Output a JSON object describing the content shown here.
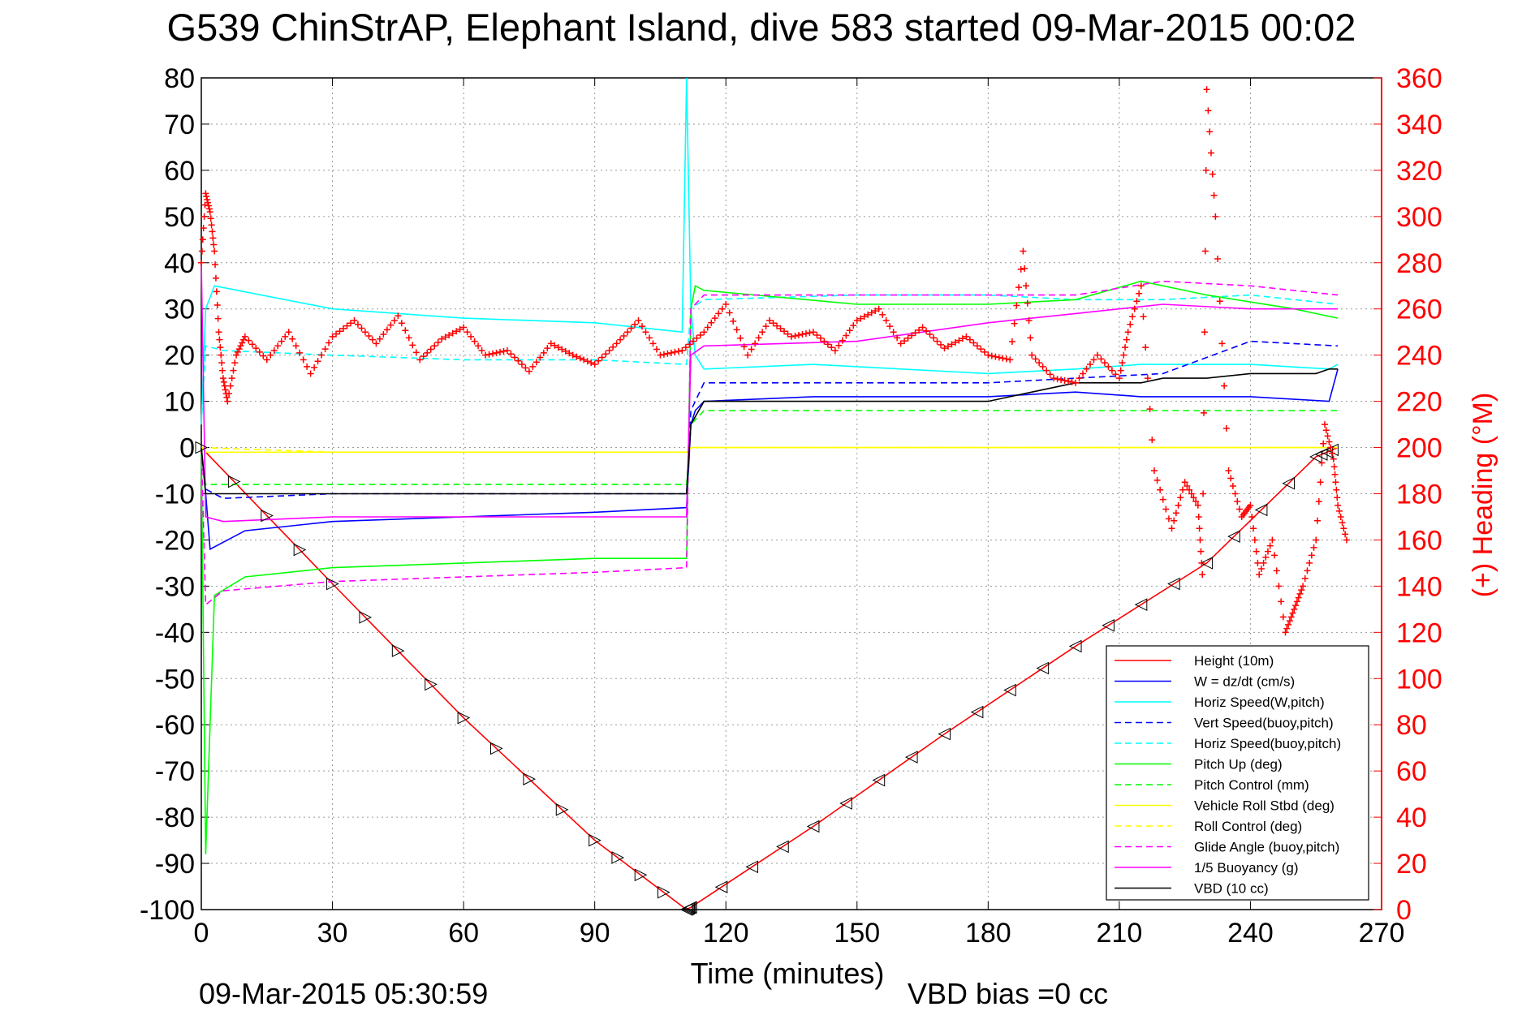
{
  "title": "G539 ChinStrAP, Elephant Island, dive 583 started 09-Mar-2015 00:02",
  "footer_timestamp": "09-Mar-2015 05:30:59",
  "footer_note": "VBD bias =0 cc",
  "colors": {
    "height": "#ff0000",
    "w": "#0000ff",
    "horiz": "#00ffff",
    "pitch": "#00ff00",
    "roll": "#ffff00",
    "glide": "#ff00ff",
    "vbd": "#000000",
    "heading": "#ff0000"
  },
  "chart_data": {
    "type": "line",
    "xlabel": "Time (minutes)",
    "ylabel_right": "(+) Heading (°M)",
    "xlim": [
      0,
      270
    ],
    "ylim": [
      -100,
      80
    ],
    "y2lim": [
      0,
      360
    ],
    "xticks": [
      0,
      30,
      60,
      90,
      120,
      150,
      180,
      210,
      240,
      270
    ],
    "yticks": [
      -100,
      -90,
      -80,
      -70,
      -60,
      -50,
      -40,
      -30,
      -20,
      -10,
      0,
      10,
      20,
      30,
      40,
      50,
      60,
      70,
      80
    ],
    "y2ticks": [
      0,
      20,
      40,
      60,
      80,
      100,
      120,
      140,
      160,
      180,
      200,
      220,
      240,
      260,
      280,
      300,
      320,
      340,
      360
    ],
    "grid": true,
    "legend_position": "bottom-right",
    "series": [
      {
        "name": "Height (10m)",
        "style": "solid",
        "color": "#ff0000",
        "x": [
          0,
          30,
          60,
          90,
          111,
          112,
          140,
          170,
          200,
          230,
          255,
          260
        ],
        "y": [
          0,
          -29.5,
          -58.5,
          -85,
          -100,
          -99.5,
          -82,
          -62,
          -43,
          -25,
          -2,
          0
        ]
      },
      {
        "name": "W = dz/dt (cm/s)",
        "style": "solid",
        "color": "#0000ff",
        "x": [
          0,
          1,
          2,
          10,
          30,
          60,
          90,
          111,
          112,
          113,
          115,
          140,
          180,
          200,
          215,
          240,
          258,
          260
        ],
        "y": [
          0,
          -10,
          -22,
          -18,
          -16,
          -15,
          -14,
          -13,
          5,
          8,
          10,
          11,
          11,
          12,
          11,
          11,
          10,
          17
        ]
      },
      {
        "name": "Horiz Speed(W,pitch)",
        "style": "solid",
        "color": "#00ffff",
        "x": [
          0,
          1,
          3,
          30,
          60,
          90,
          110,
          111,
          112,
          113,
          115,
          140,
          180,
          200,
          215,
          240,
          258,
          260
        ],
        "y": [
          5,
          30,
          35,
          30,
          28,
          27,
          25,
          80,
          30,
          20,
          17,
          18,
          16,
          17,
          18,
          18,
          17,
          18
        ]
      },
      {
        "name": "Vert Speed(buoy,pitch)",
        "style": "dashed",
        "color": "#0000ff",
        "x": [
          0,
          1,
          5,
          30,
          60,
          90,
          111,
          112,
          115,
          150,
          180,
          200,
          220,
          240,
          260
        ],
        "y": [
          0,
          -9,
          -11,
          -10,
          -10,
          -10,
          -10,
          8,
          14,
          14,
          14,
          15,
          16,
          23,
          22
        ]
      },
      {
        "name": "Horiz Speed(buoy,pitch)",
        "style": "dashed",
        "color": "#00ffff",
        "x": [
          0,
          1,
          5,
          30,
          60,
          90,
          111,
          112,
          115,
          150,
          180,
          200,
          220,
          240,
          260
        ],
        "y": [
          5,
          22,
          21,
          20,
          19,
          19,
          18,
          30,
          32,
          33,
          33,
          32,
          32,
          33,
          31
        ]
      },
      {
        "name": "Pitch Up (deg)",
        "style": "solid",
        "color": "#00ff00",
        "x": [
          0,
          1,
          3,
          10,
          30,
          60,
          90,
          111,
          112,
          113,
          115,
          150,
          180,
          200,
          215,
          230,
          250,
          260
        ],
        "y": [
          0,
          -88,
          -32,
          -28,
          -26,
          -25,
          -24,
          -24,
          30,
          35,
          34,
          31,
          31,
          32,
          36,
          33,
          30,
          28
        ]
      },
      {
        "name": "Pitch Control (mm)",
        "style": "dashed",
        "color": "#00ff00",
        "x": [
          0,
          1,
          5,
          30,
          60,
          90,
          111,
          112,
          115,
          150,
          180,
          200,
          230,
          260
        ],
        "y": [
          0,
          -8,
          -8,
          -8,
          -8,
          -8,
          -8,
          5,
          8,
          8,
          8,
          8,
          8,
          8
        ]
      },
      {
        "name": "Vehicle Roll Stbd (deg)",
        "style": "solid",
        "color": "#ffff00",
        "x": [
          0,
          1,
          30,
          60,
          90,
          111,
          112,
          150,
          185,
          186,
          200,
          240,
          260
        ],
        "y": [
          0,
          -1,
          -1,
          -1,
          -1,
          -1,
          0,
          0,
          0,
          0,
          0,
          0,
          0
        ]
      },
      {
        "name": "Roll Control (deg)",
        "style": "dashed",
        "color": "#ffff00",
        "x": [
          0,
          30,
          60,
          90,
          111,
          112,
          150,
          200,
          230,
          260
        ],
        "y": [
          0,
          -1,
          -1,
          -1,
          -1,
          0,
          0,
          0,
          0,
          0
        ]
      },
      {
        "name": "Glide Angle (buoy,pitch)",
        "style": "dashed",
        "color": "#ff00ff",
        "x": [
          0,
          1,
          5,
          30,
          60,
          90,
          111,
          112,
          115,
          150,
          180,
          200,
          220,
          240,
          260
        ],
        "y": [
          0,
          -34,
          -31,
          -29,
          -28,
          -27,
          -26,
          30,
          33,
          33,
          33,
          33,
          36,
          35,
          33
        ]
      },
      {
        "name": "1/5 Buoyancy (g)",
        "style": "solid",
        "color": "#ff00ff",
        "x": [
          0,
          1,
          5,
          30,
          60,
          90,
          111,
          112,
          115,
          150,
          180,
          200,
          220,
          240,
          260
        ],
        "y": [
          40,
          -15,
          -16,
          -15,
          -15,
          -15,
          -15,
          20,
          22,
          23,
          27,
          29,
          31,
          30,
          30
        ]
      },
      {
        "name": "VBD (10 cc)",
        "style": "solid",
        "color": "#000000",
        "x": [
          0,
          1,
          5,
          30,
          60,
          90,
          110,
          111,
          112,
          115,
          150,
          180,
          190,
          200,
          215,
          220,
          230,
          240,
          255,
          258,
          260
        ],
        "y": [
          0,
          -10,
          -10,
          -10,
          -10,
          -10,
          -10,
          -10,
          5,
          10,
          10,
          10,
          12,
          14,
          14,
          15,
          15,
          16,
          16,
          17,
          17
        ]
      }
    ],
    "heading_series": {
      "marker": "+",
      "color": "#ff0000",
      "axis": "right",
      "x": [
        0,
        1,
        2,
        3,
        4,
        5,
        6,
        8,
        10,
        15,
        20,
        25,
        30,
        35,
        40,
        45,
        50,
        55,
        60,
        65,
        70,
        75,
        80,
        85,
        90,
        95,
        100,
        105,
        110,
        115,
        120,
        125,
        130,
        135,
        140,
        145,
        150,
        155,
        160,
        165,
        170,
        175,
        180,
        185,
        188,
        190,
        195,
        200,
        205,
        210,
        212,
        215,
        218,
        222,
        225,
        228,
        229,
        230,
        232,
        235,
        238,
        240,
        242,
        245,
        248,
        250,
        252,
        255,
        257,
        259,
        260,
        262
      ],
      "y": [
        280,
        310,
        302,
        285,
        250,
        230,
        220,
        240,
        248,
        238,
        250,
        232,
        248,
        255,
        245,
        257,
        238,
        247,
        252,
        240,
        242,
        233,
        245,
        240,
        236,
        245,
        255,
        240,
        242,
        250,
        262,
        240,
        255,
        248,
        250,
        242,
        255,
        260,
        245,
        252,
        243,
        248,
        240,
        238,
        285,
        240,
        230,
        228,
        240,
        230,
        250,
        270,
        190,
        165,
        185,
        175,
        145,
        355,
        300,
        190,
        170,
        175,
        145,
        160,
        120,
        130,
        140,
        160,
        210,
        195,
        175,
        160
      ]
    }
  }
}
